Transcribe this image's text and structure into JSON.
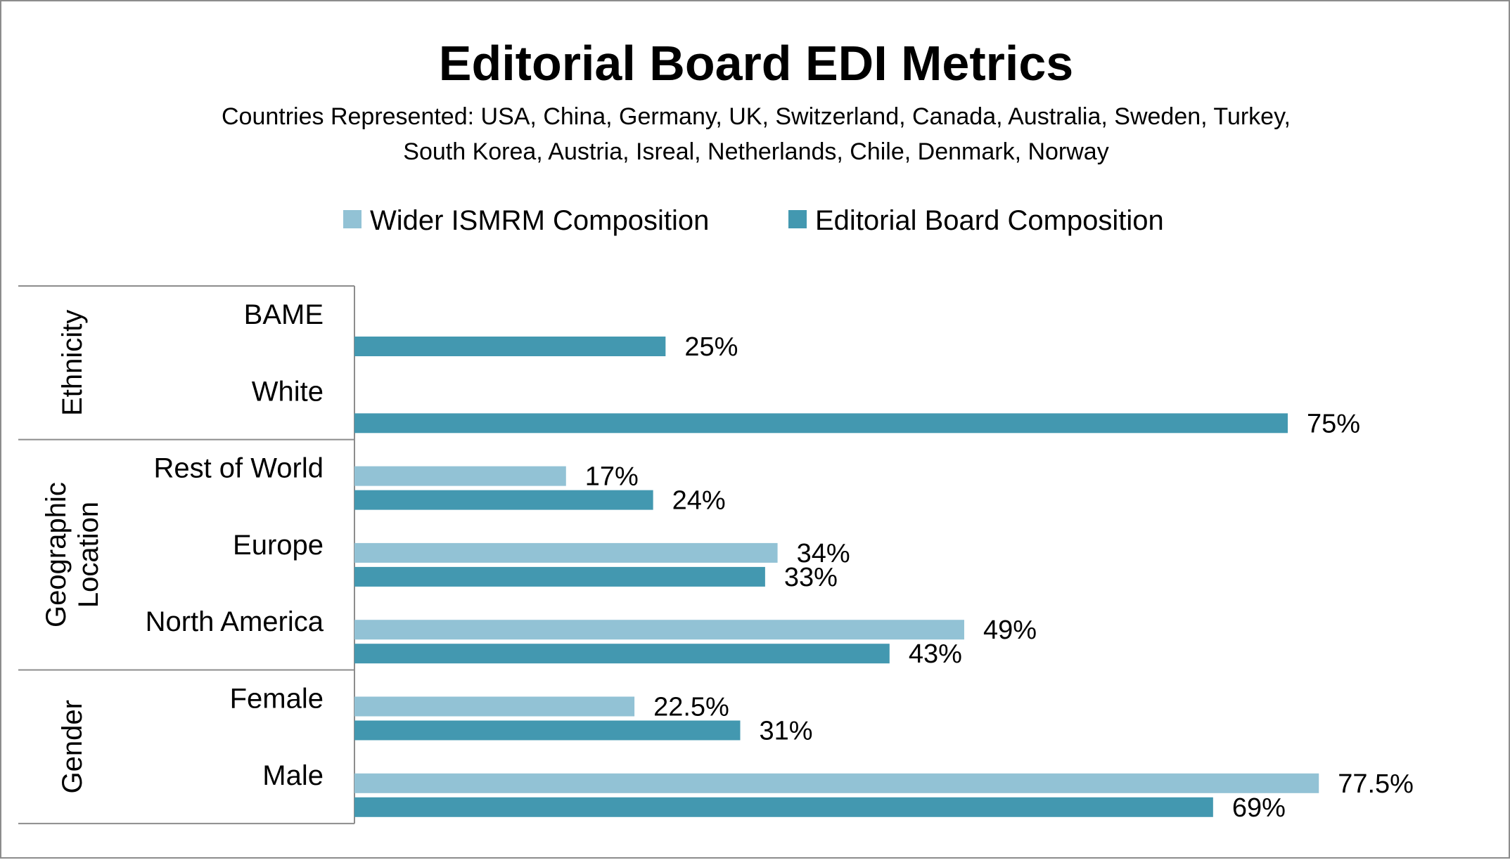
{
  "chart_data": {
    "type": "bar",
    "orientation": "horizontal",
    "title": "Editorial Board EDI Metrics",
    "subtitle_lines": [
      "Countries Represented:  USA, China, Germany, UK, Switzerland, Canada, Australia, Sweden, Turkey,",
      "South Korea, Austria, Isreal, Netherlands, Chile, Denmark, Norway"
    ],
    "legend_position": "top",
    "xlim": [
      0,
      100
    ],
    "grid": false,
    "categories": [
      "BAME",
      "White",
      "Rest of World",
      "Europe",
      "North America",
      "Female",
      "Male"
    ],
    "groups": [
      {
        "name": "Ethnicity",
        "lines": [
          "Ethnicity"
        ],
        "categories": [
          "BAME",
          "White"
        ]
      },
      {
        "name": "Geographic Location",
        "lines": [
          "Geographic",
          "Location"
        ],
        "categories": [
          "Rest of World",
          "Europe",
          "North America"
        ]
      },
      {
        "name": "Gender",
        "lines": [
          "Gender"
        ],
        "categories": [
          "Female",
          "Male"
        ]
      }
    ],
    "series": [
      {
        "name": "Wider ISMRM Composition",
        "color": "#92c2d5",
        "values": [
          null,
          null,
          17,
          34,
          49,
          22.5,
          77.5
        ],
        "labels": [
          null,
          null,
          "17%",
          "34%",
          "49%",
          "22.5%",
          "77.5%"
        ]
      },
      {
        "name": "Editorial Board Composition",
        "color": "#4398b0",
        "values": [
          25,
          75,
          24,
          33,
          43,
          31,
          69
        ],
        "labels": [
          "25%",
          "75%",
          "24%",
          "33%",
          "43%",
          "31%",
          "69%"
        ]
      }
    ]
  },
  "colors": {
    "axis": "#8c8c8c",
    "border": "#8c8c8c",
    "text": "#000000"
  }
}
